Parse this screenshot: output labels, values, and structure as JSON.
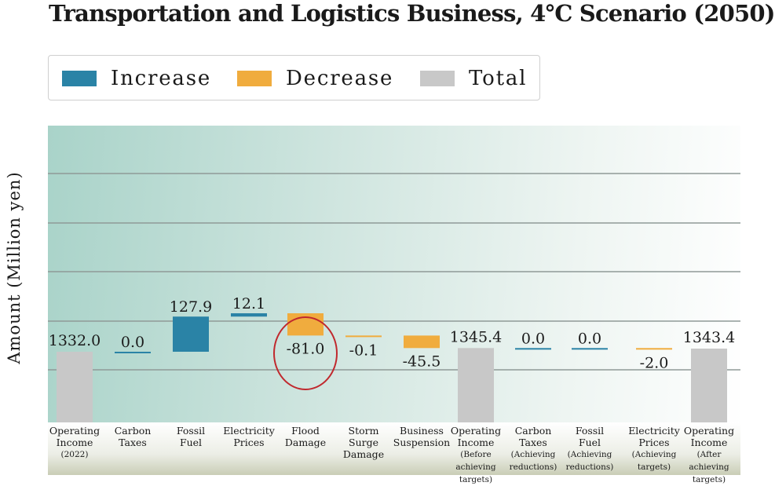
{
  "chart_data": {
    "type": "bar",
    "subtype": "waterfall",
    "title": "Transportation and Logistics Business,  4℃ Scenario (2050)",
    "ylabel": "Amount (Million yen)",
    "legend": {
      "placement": "top",
      "entries": [
        {
          "key": "increase",
          "label": "Increase",
          "color": "#2a83a6"
        },
        {
          "key": "decrease",
          "label": "Decrease",
          "color": "#f0ac3e"
        },
        {
          "key": "total",
          "label": "Total",
          "color": "#c8c8c8"
        }
      ]
    },
    "grid": true,
    "categories": [
      {
        "lines": [
          "Operating",
          "Income"
        ],
        "small": [
          "(2022)"
        ]
      },
      {
        "lines": [
          "Carbon",
          "Taxes"
        ],
        "small": []
      },
      {
        "lines": [
          "Fossil",
          "Fuel"
        ],
        "small": []
      },
      {
        "lines": [
          "Electricity",
          "Prices"
        ],
        "small": []
      },
      {
        "lines": [
          "Flood",
          "Damage"
        ],
        "small": []
      },
      {
        "lines": [
          "Storm",
          "Surge",
          "Damage"
        ],
        "small": []
      },
      {
        "lines": [
          "Business",
          "Suspension"
        ],
        "small": []
      },
      {
        "lines": [
          "Operating",
          "Income"
        ],
        "small": [
          "(Before achieving",
          "targets)"
        ]
      },
      {
        "lines": [
          "Carbon",
          "Taxes"
        ],
        "small": [
          "(Achieving",
          "reductions)"
        ]
      },
      {
        "lines": [
          "Fossil",
          "Fuel"
        ],
        "small": [
          "(Achieving",
          "reductions)"
        ]
      },
      {
        "lines": [
          "Electricity",
          "Prices"
        ],
        "small": [
          "(Achieving",
          "targets)"
        ]
      },
      {
        "lines": [
          "Operating",
          "Income"
        ],
        "small": [
          "(After achieving",
          "targets)"
        ]
      }
    ],
    "values": [
      1332.0,
      0.0,
      127.9,
      12.1,
      -81.0,
      -0.1,
      -45.5,
      1345.4,
      0.0,
      0.0,
      -2.0,
      1343.4
    ],
    "value_labels": [
      "1332.0",
      "0.0",
      "127.9",
      "12.1",
      "-81.0",
      "-0.1",
      "-45.5",
      "1345.4",
      "0.0",
      "0.0",
      "-2.0",
      "1343.4"
    ],
    "kinds": [
      "total",
      "increase",
      "increase",
      "increase",
      "decrease",
      "decrease",
      "decrease",
      "total",
      "increase",
      "increase",
      "decrease",
      "total"
    ],
    "highlight_index": 4,
    "highlight_color": "#c0282d"
  }
}
